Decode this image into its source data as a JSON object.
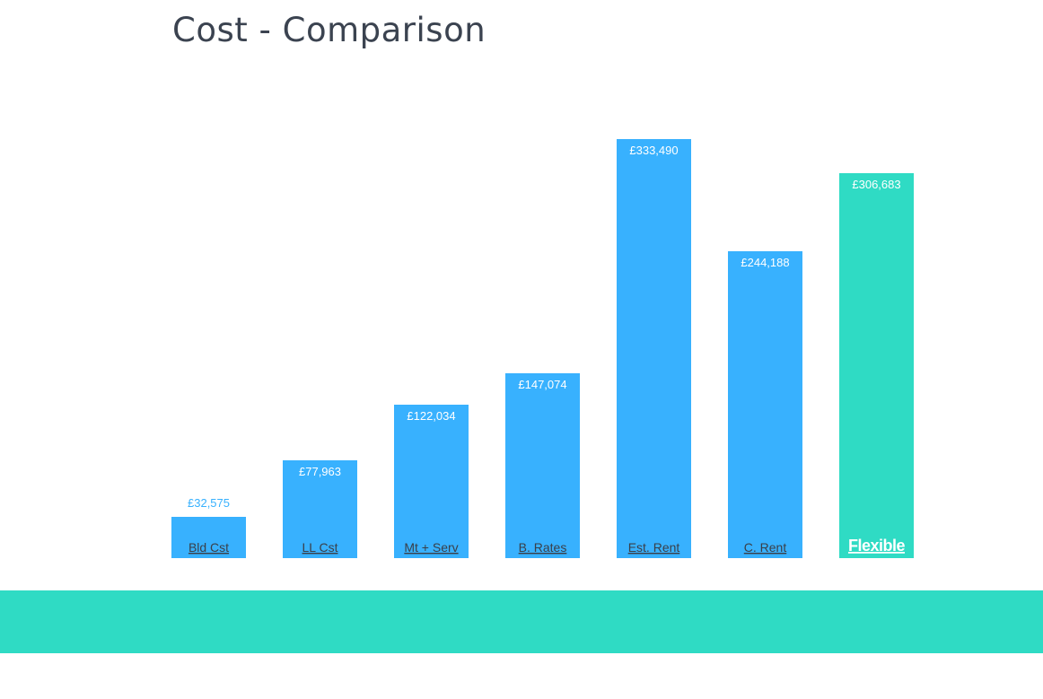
{
  "page": {
    "title": "Cost - Comparison"
  },
  "colors": {
    "bar_default": "#38b1fe",
    "bar_highlight": "#2fdbc4",
    "value_label_inside": "#ffffff",
    "value_label_outside": "#38b1fe",
    "category_label": "#3a3f48",
    "highlight_label": "#ffffff",
    "footer_band": "#2fdbc4"
  },
  "chart_data": {
    "type": "bar",
    "title": "Cost - Comparison",
    "categories": [
      "Bld Cst",
      "LL Cst",
      "Mt + Serv",
      "B. Rates",
      "Est. Rent",
      "C. Rent",
      "Flexible"
    ],
    "values": [
      32575,
      77963,
      122034,
      147074,
      333490,
      244188,
      306683
    ],
    "value_labels": [
      "£32,575",
      "£77,963",
      "£122,034",
      "£147,074",
      "£333,490",
      "£244,188",
      "£306,683"
    ],
    "highlight_index": 6,
    "xlabel": "",
    "ylabel": "",
    "ylim": [
      0,
      333490
    ],
    "grid": false,
    "legend": "none"
  }
}
